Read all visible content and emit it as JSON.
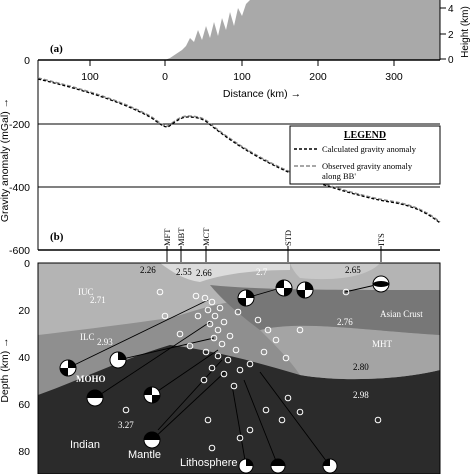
{
  "figure": {
    "panel_a_label": "(a)",
    "panel_b_label": "(b)",
    "height_label": "Height (km)",
    "height_tick_4": "4",
    "height_tick_2": "2",
    "height_tick_0": "0",
    "x_axis_label": "Distance (km) →",
    "x_ticks": [
      "100",
      "0",
      "100",
      "200",
      "300"
    ],
    "gravity_label": "Gravity anomaly (mGal) →",
    "gravity_ticks": [
      "0",
      "-200",
      "-400",
      "-600"
    ],
    "depth_label": "Depth (km) →",
    "depth_ticks": [
      "0",
      "20",
      "40",
      "60",
      "80"
    ],
    "legend_title": "LEGEND",
    "legend_calc": "Calculated gravity anomaly",
    "legend_obs_line1": "Observed gravity anomaly",
    "legend_obs_line2": "along BB'",
    "thrusts": [
      "MFT",
      "MBT",
      "MCT",
      "STD",
      "ITS"
    ],
    "layers": {
      "iuc": "IUC",
      "ilc": "ILC",
      "moho": "MOHO",
      "asian_crust": "Asian Crust",
      "mht": "MHT",
      "indian": "Indian",
      "mantle": "Mantle",
      "lithosphere": "Lithosphere"
    },
    "densities": [
      "2.26",
      "2.55",
      "2.66",
      "2.7",
      "2.65",
      "2.71",
      "2.76",
      "2.93",
      "2.80",
      "2.98",
      "3.27"
    ]
  },
  "colors": {
    "topography": "#a9a9a9",
    "sediment": "#dcdcdc",
    "upper_crust": "#b4b4b4",
    "lower_crust": "#8f8f8f",
    "asian_crust": "#777777",
    "lower_asian": "#a4a4a4",
    "mantle": "#2b2b2b"
  }
}
